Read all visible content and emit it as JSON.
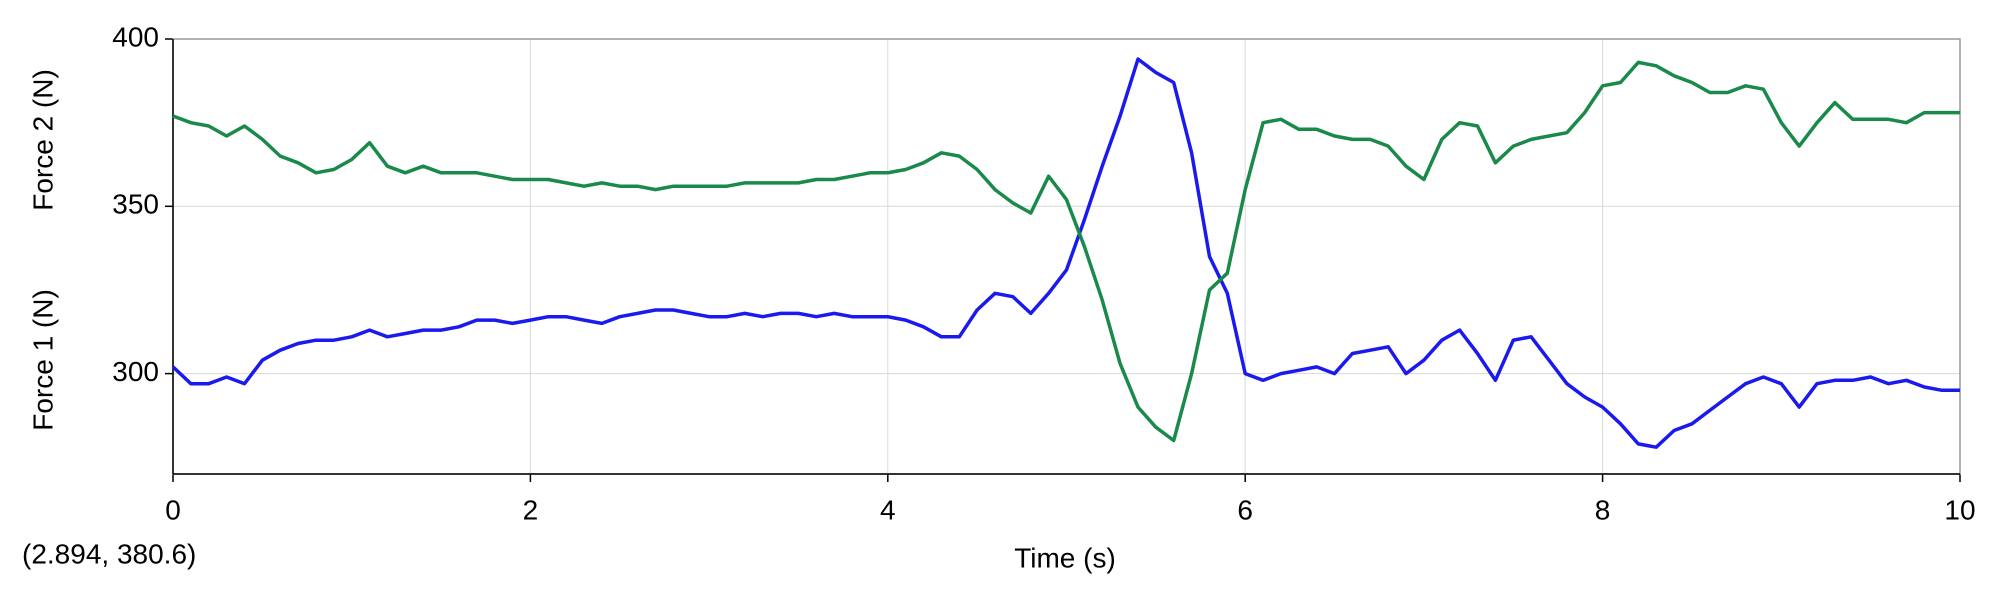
{
  "chart_data": {
    "type": "line",
    "x_label": "Time (s)",
    "y_labels": [
      {
        "text": "Force 1 (N)",
        "color": "#1a1aee"
      },
      {
        "text": "Force 2 (N)",
        "color": "#1a8a4a"
      }
    ],
    "annotation": "(2.894, 380.6)",
    "x": [
      0,
      0.1,
      0.2,
      0.3,
      0.4,
      0.5,
      0.6,
      0.7,
      0.8,
      0.9,
      1,
      1.1,
      1.2,
      1.3,
      1.4,
      1.5,
      1.6,
      1.7,
      1.8,
      1.9,
      2,
      2.1,
      2.2,
      2.3,
      2.4,
      2.5,
      2.6,
      2.7,
      2.8,
      2.9,
      3,
      3.1,
      3.2,
      3.3,
      3.4,
      3.5,
      3.6,
      3.7,
      3.8,
      3.9,
      4,
      4.1,
      4.2,
      4.3,
      4.4,
      4.5,
      4.6,
      4.7,
      4.8,
      4.9,
      5,
      5.1,
      5.2,
      5.3,
      5.4,
      5.5,
      5.6,
      5.7,
      5.8,
      5.9,
      6,
      6.1,
      6.2,
      6.3,
      6.4,
      6.5,
      6.6,
      6.7,
      6.8,
      6.9,
      7,
      7.1,
      7.2,
      7.3,
      7.4,
      7.5,
      7.6,
      7.7,
      7.8,
      7.9,
      8,
      8.1,
      8.2,
      8.3,
      8.4,
      8.5,
      8.6,
      8.7,
      8.8,
      8.9,
      9,
      9.1,
      9.2,
      9.3,
      9.4,
      9.5,
      9.6,
      9.7,
      9.8,
      9.9,
      10
    ],
    "series": [
      {
        "name": "Force 1 (N)",
        "color": "#1a1aee",
        "values": [
          302,
          297,
          297,
          299,
          297,
          304,
          307,
          309,
          310,
          310,
          311,
          313,
          311,
          312,
          313,
          313,
          314,
          316,
          316,
          315,
          316,
          317,
          317,
          316,
          315,
          317,
          318,
          319,
          319,
          318,
          317,
          317,
          318,
          317,
          318,
          318,
          317,
          318,
          317,
          317,
          317,
          316,
          314,
          311,
          311,
          319,
          324,
          323,
          318,
          324,
          331,
          346,
          362,
          377,
          394,
          390,
          387,
          366,
          335,
          324,
          300,
          298,
          300,
          301,
          302,
          300,
          306,
          307,
          308,
          300,
          304,
          310,
          313,
          306,
          298,
          310,
          311,
          304,
          297,
          293,
          290,
          285,
          279,
          278,
          283,
          285,
          289,
          293,
          297,
          299,
          297,
          290,
          297,
          298,
          298,
          299,
          297,
          298,
          296,
          295,
          295
        ]
      },
      {
        "name": "Force 2 (N)",
        "color": "#1a8a4a",
        "values": [
          377,
          375,
          374,
          371,
          374,
          370,
          365,
          363,
          360,
          361,
          364,
          369,
          362,
          360,
          362,
          360,
          360,
          360,
          359,
          358,
          358,
          358,
          357,
          356,
          357,
          356,
          356,
          355,
          356,
          356,
          356,
          356,
          357,
          357,
          357,
          357,
          358,
          358,
          359,
          360,
          360,
          361,
          363,
          366,
          365,
          361,
          355,
          351,
          348,
          359,
          352,
          338,
          322,
          303,
          290,
          284,
          280,
          300,
          325,
          330,
          355,
          375,
          376,
          373,
          373,
          371,
          370,
          370,
          368,
          362,
          358,
          370,
          375,
          374,
          363,
          368,
          370,
          371,
          372,
          378,
          386,
          387,
          393,
          392,
          389,
          387,
          384,
          384,
          386,
          385,
          375,
          368,
          375,
          381,
          376,
          376,
          376,
          375,
          378,
          378,
          378
        ]
      }
    ],
    "xlim": [
      0,
      10
    ],
    "xticks": [
      0,
      2,
      4,
      6,
      8,
      10
    ],
    "ylim": [
      270,
      400
    ],
    "yticks": [
      300,
      350,
      400
    ],
    "grid": true
  }
}
